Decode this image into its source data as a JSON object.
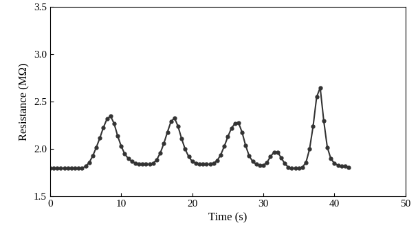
{
  "chart_data": {
    "type": "line",
    "xlabel": "Time (s)",
    "ylabel": "Resistance (MΩ)",
    "x": [
      0,
      0.5,
      1,
      1.5,
      2,
      2.5,
      3,
      3.5,
      4,
      4.5,
      5,
      5.5,
      6,
      6.5,
      7,
      7.5,
      8,
      8.5,
      9,
      9.5,
      10,
      10.5,
      11,
      11.5,
      12,
      12.5,
      13,
      13.5,
      14,
      14.5,
      15,
      15.5,
      16,
      16.5,
      17,
      17.5,
      18,
      18.5,
      19,
      19.5,
      20,
      20.5,
      21,
      21.5,
      22,
      22.5,
      23,
      23.5,
      24,
      24.5,
      25,
      25.5,
      26,
      26.5,
      27,
      27.5,
      28,
      28.5,
      29,
      29.5,
      30,
      30.5,
      31,
      31.5,
      32,
      32.5,
      33,
      33.5,
      34,
      34.5,
      35,
      35.5,
      36,
      36.5,
      37,
      37.5,
      38,
      38.5,
      39,
      39.5,
      40,
      40.5,
      41,
      41.5,
      42
    ],
    "values": [
      1.8,
      1.8,
      1.8,
      1.8,
      1.8,
      1.8,
      1.8,
      1.8,
      1.8,
      1.8,
      1.82,
      1.86,
      1.93,
      2.02,
      2.12,
      2.23,
      2.32,
      2.35,
      2.27,
      2.14,
      2.03,
      1.95,
      1.9,
      1.87,
      1.85,
      1.84,
      1.84,
      1.84,
      1.84,
      1.85,
      1.89,
      1.96,
      2.06,
      2.18,
      2.29,
      2.33,
      2.24,
      2.11,
      2.0,
      1.92,
      1.87,
      1.85,
      1.84,
      1.84,
      1.84,
      1.84,
      1.85,
      1.88,
      1.94,
      2.03,
      2.13,
      2.22,
      2.27,
      2.28,
      2.18,
      2.04,
      1.93,
      1.87,
      1.84,
      1.83,
      1.83,
      1.86,
      1.92,
      1.97,
      1.97,
      1.91,
      1.85,
      1.81,
      1.8,
      1.8,
      1.8,
      1.81,
      1.86,
      2.0,
      2.24,
      2.55,
      2.65,
      2.3,
      2.02,
      1.9,
      1.85,
      1.83,
      1.82,
      1.82,
      1.81
    ],
    "color": "#333333",
    "marker": "o",
    "line_style": "solid",
    "xlim": [
      0,
      50
    ],
    "xticks": [
      0,
      10,
      20,
      30,
      40,
      50
    ],
    "ylim": [
      1.5,
      3.5
    ],
    "yticks": [
      1.5,
      2.0,
      2.5,
      3.0,
      3.5
    ],
    "grid": false
  }
}
